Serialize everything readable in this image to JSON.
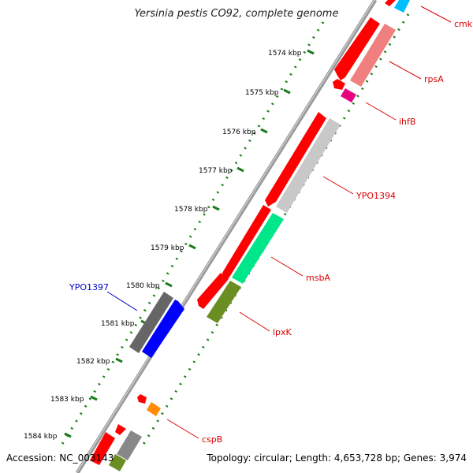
{
  "title": "Yersinia pestis CO92, complete genome",
  "footer": {
    "accession": "Accession: NC_003143",
    "topology": "Topology: circular; Length: 4,653,728 bp; Genes: 3,974"
  },
  "ticks": [
    {
      "label": "1574 kbp"
    },
    {
      "label": "1575 kbp"
    },
    {
      "label": "1576 kbp"
    },
    {
      "label": "1577 kbp"
    },
    {
      "label": "1578 kbp"
    },
    {
      "label": "1579 kbp"
    },
    {
      "label": "1580 kbp"
    },
    {
      "label": "1581 kbp"
    },
    {
      "label": "1582 kbp"
    },
    {
      "label": "1583 kbp"
    },
    {
      "label": "1584 kbp"
    }
  ],
  "genes": [
    {
      "name": "cmk",
      "color": "#dd0000"
    },
    {
      "name": "rpsA",
      "color": "#dd0000"
    },
    {
      "name": "ihfB",
      "color": "#dd0000"
    },
    {
      "name": "YPO1394",
      "color": "#dd0000"
    },
    {
      "name": "msbA",
      "color": "#dd0000"
    },
    {
      "name": "lpxK",
      "color": "#dd0000"
    },
    {
      "name": "YPO1397",
      "color": "#0000cc"
    },
    {
      "name": "cspB",
      "color": "#dd0000"
    }
  ],
  "colors": {
    "backbone": "#9a9a9a",
    "tick_dots": "#1a7a1a",
    "cds_forward": "#ff0000",
    "cds_reverse": "#0000ff",
    "cog_pink": "#f08080",
    "cog_magenta": "#e6007e",
    "cog_gray": "#c8c8c8",
    "cog_green": "#00e68a",
    "cog_olive": "#6b8e23",
    "cog_dark_gray": "#666666",
    "cog_orange": "#ff8c00",
    "cog_cyan": "#00bfff"
  }
}
